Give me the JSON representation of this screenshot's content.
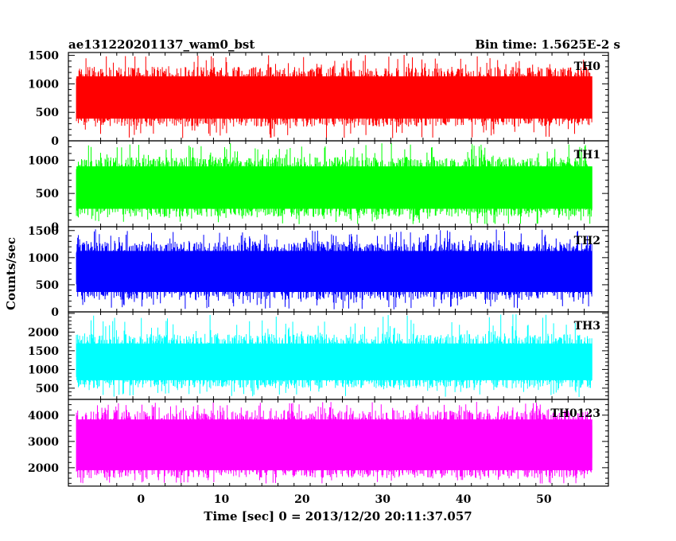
{
  "chart_data": {
    "type": "line",
    "title_left": "ae131220201137_wam0_bst",
    "title_right": "Bin time: 1.5625E-2 s",
    "xlabel": "Time [sec] 0 = 2013/12/20 20:11:37.057",
    "ylabel": "Counts/sec",
    "xlim": [
      -9,
      58
    ],
    "x_data_range": [
      -8,
      56
    ],
    "x_ticks": [
      0,
      10,
      20,
      30,
      40,
      50
    ],
    "x_tick_labels": [
      "0",
      "10",
      "20",
      "30",
      "40",
      "50"
    ],
    "grid": false,
    "panels": [
      {
        "label": "TH0",
        "color": "#ff0000",
        "ylim": [
          0,
          1550
        ],
        "y_ticks": [
          0,
          500,
          1000,
          1500
        ],
        "y_tick_labels": [
          "0",
          "500",
          "1000",
          "1500"
        ],
        "mean": 780,
        "typical_low": 250,
        "typical_high": 1300
      },
      {
        "label": "TH1",
        "color": "#00ff00",
        "ylim": [
          0,
          1290
        ],
        "y_ticks": [
          0,
          500,
          1000
        ],
        "y_tick_labels": [
          "0",
          "500",
          "1000"
        ],
        "mean": 600,
        "typical_low": 150,
        "typical_high": 1050
      },
      {
        "label": "TH2",
        "color": "#0000ff",
        "ylim": [
          0,
          1570
        ],
        "y_ticks": [
          0,
          500,
          1000,
          1500
        ],
        "y_tick_labels": [
          "0",
          "500",
          "1000",
          "1500"
        ],
        "mean": 780,
        "typical_low": 220,
        "typical_high": 1300
      },
      {
        "label": "TH3",
        "color": "#00ffff",
        "ylim": [
          200,
          2540
        ],
        "y_ticks": [
          500,
          1000,
          1500,
          2000
        ],
        "y_tick_labels": [
          "500",
          "1000",
          "1500",
          "2000"
        ],
        "mean": 1200,
        "typical_low": 500,
        "typical_high": 1950
      },
      {
        "label": "TH0123",
        "color": "#ff00ff",
        "ylim": [
          1300,
          4600
        ],
        "y_ticks": [
          2000,
          3000,
          4000
        ],
        "y_tick_labels": [
          "2000",
          "3000",
          "4000"
        ],
        "mean": 2900,
        "typical_low": 1600,
        "typical_high": 4200
      }
    ]
  }
}
